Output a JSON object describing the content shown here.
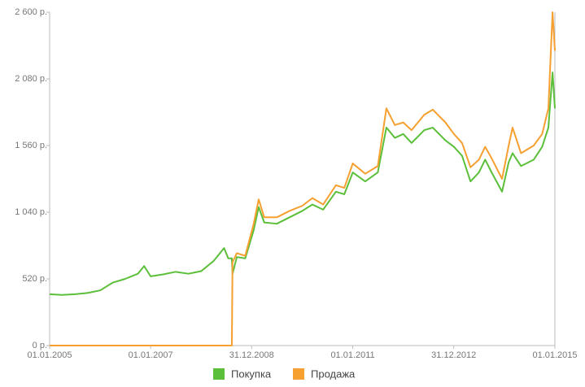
{
  "chart_data": {
    "type": "line",
    "x": [
      "2005-01-01",
      "2005-04-01",
      "2005-07-01",
      "2005-10-01",
      "2006-01-01",
      "2006-04-01",
      "2006-07-01",
      "2006-10-01",
      "2006-11-15",
      "2007-01-01",
      "2007-04-01",
      "2007-07-01",
      "2007-10-01",
      "2008-01-01",
      "2008-04-01",
      "2008-06-15",
      "2008-07-15",
      "2008-08-10",
      "2008-08-15",
      "2008-09-15",
      "2008-11-15",
      "2009-01-15",
      "2009-02-20",
      "2009-04-01",
      "2009-07-01",
      "2009-10-01",
      "2010-01-01",
      "2010-03-15",
      "2010-06-01",
      "2010-09-01",
      "2010-11-01",
      "2011-01-01",
      "2011-04-01",
      "2011-07-01",
      "2011-09-01",
      "2011-11-01",
      "2012-01-01",
      "2012-03-01",
      "2012-06-01",
      "2012-08-01",
      "2012-11-01",
      "2013-01-01",
      "2013-03-01",
      "2013-05-01",
      "2013-07-01",
      "2013-08-15",
      "2013-10-01",
      "2013-12-15",
      "2014-02-01",
      "2014-03-01",
      "2014-05-01",
      "2014-08-01",
      "2014-10-01",
      "2014-11-15",
      "2014-12-15",
      "2015-01-01"
    ],
    "series": [
      {
        "name": "Покупка",
        "color": "#5cbf3a",
        "values": [
          400,
          395,
          400,
          410,
          430,
          490,
          520,
          560,
          620,
          540,
          555,
          575,
          560,
          580,
          660,
          760,
          680,
          680,
          560,
          690,
          680,
          900,
          1080,
          960,
          950,
          1000,
          1050,
          1100,
          1060,
          1200,
          1180,
          1350,
          1280,
          1350,
          1700,
          1620,
          1650,
          1580,
          1680,
          1700,
          1600,
          1550,
          1480,
          1280,
          1350,
          1450,
          1350,
          1200,
          1430,
          1500,
          1400,
          1450,
          1550,
          1700,
          2130,
          1850
        ]
      },
      {
        "name": "Продажа",
        "color": "#f5a030",
        "values": [
          0,
          0,
          0,
          0,
          0,
          0,
          0,
          0,
          0,
          0,
          0,
          0,
          0,
          0,
          0,
          0,
          0,
          0,
          650,
          720,
          700,
          950,
          1140,
          1000,
          1000,
          1050,
          1090,
          1150,
          1100,
          1250,
          1230,
          1420,
          1340,
          1400,
          1850,
          1720,
          1740,
          1680,
          1800,
          1840,
          1740,
          1650,
          1580,
          1390,
          1450,
          1550,
          1460,
          1300,
          1560,
          1700,
          1500,
          1560,
          1650,
          1850,
          2600,
          2300
        ]
      }
    ],
    "xlim": [
      "2005-01-01",
      "2015-01-01"
    ],
    "xticks": [
      {
        "value": "2005-01-01",
        "label": "01.01.2005"
      },
      {
        "value": "2007-01-01",
        "label": "01.01.2007"
      },
      {
        "value": "2008-12-31",
        "label": "31.12.2008"
      },
      {
        "value": "2011-01-01",
        "label": "01.01.2011"
      },
      {
        "value": "2012-12-31",
        "label": "31.12.2012"
      },
      {
        "value": "2015-01-01",
        "label": "01.01.2015"
      }
    ],
    "ylim": [
      0,
      2600
    ],
    "yticks": [
      {
        "value": 0,
        "label": "0 р."
      },
      {
        "value": 520,
        "label": "520 р."
      },
      {
        "value": 1040,
        "label": "1 040 р."
      },
      {
        "value": 1560,
        "label": "1 560 р."
      },
      {
        "value": 2080,
        "label": "2 080 р."
      },
      {
        "value": 2600,
        "label": "2 600 р."
      }
    ],
    "grid": false,
    "legend": "bottom"
  }
}
